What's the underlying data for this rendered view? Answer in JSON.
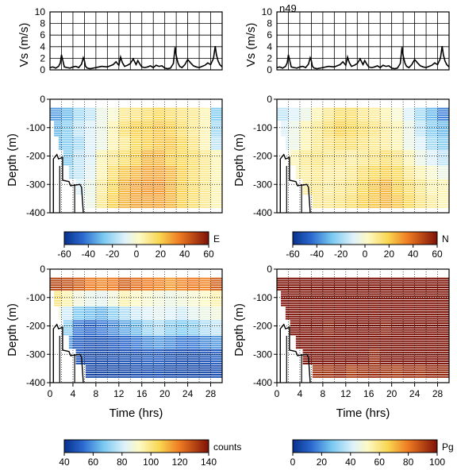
{
  "figure": {
    "station_label": "n49"
  },
  "chart_data": [
    {
      "id": "vs-left",
      "type": "line",
      "ylabel": "Vs (m/s)",
      "ylim": [
        0,
        10
      ],
      "yticks": [
        0,
        2,
        4,
        6,
        8,
        10
      ],
      "xlim": [
        0,
        30
      ],
      "grid": true,
      "x": [
        0,
        0.5,
        1,
        1.5,
        1.8,
        2,
        2.2,
        2.5,
        3,
        3.5,
        4,
        4.5,
        5,
        5.5,
        5.8,
        6,
        6.2,
        6.5,
        7,
        8,
        9,
        10,
        10.5,
        11,
        11.5,
        12,
        12.3,
        12.6,
        13,
        13.5,
        14,
        14.5,
        15,
        15.3,
        15.6,
        16,
        16.5,
        17,
        17.5,
        18,
        18.5,
        19,
        19.5,
        20,
        20.5,
        21,
        21.5,
        21.8,
        22,
        22.3,
        22.6,
        23,
        23.5,
        24,
        24.5,
        25,
        25.5,
        26,
        26.5,
        27,
        27.5,
        28,
        28.5,
        28.8,
        29,
        29.3,
        29.6,
        30
      ],
      "values": [
        0.4,
        0.5,
        0.3,
        0.6,
        1.2,
        2.6,
        1.8,
        0.5,
        0.4,
        0.3,
        0.5,
        0.6,
        0.4,
        1,
        2.1,
        1.6,
        0.6,
        0.3,
        0.2,
        0.4,
        0.6,
        0.5,
        0.7,
        0.9,
        1.4,
        0.8,
        2.2,
        1.3,
        0.6,
        0.8,
        1.1,
        1.9,
        0.9,
        1.6,
        1.1,
        0.5,
        0.4,
        0.5,
        0.7,
        0.4,
        0.8,
        0.6,
        0.7,
        0.3,
        0.2,
        0.3,
        1.1,
        3.9,
        2.5,
        1.2,
        0.6,
        0.4,
        0.9,
        1.8,
        1.2,
        0.7,
        0.5,
        0.4,
        0.6,
        0.8,
        1.2,
        0.9,
        2,
        4.1,
        2.6,
        1.5,
        0.9,
        0.5
      ]
    },
    {
      "id": "vs-right",
      "type": "line",
      "ylabel": "Vs (m/s)",
      "ylim": [
        0,
        10
      ],
      "yticks": [
        0,
        2,
        4,
        6,
        8,
        10
      ],
      "xlim": [
        0,
        30
      ],
      "grid": true,
      "x": [
        0,
        0.5,
        1,
        1.5,
        1.8,
        2,
        2.2,
        2.5,
        3,
        3.5,
        4,
        4.5,
        5,
        5.5,
        5.8,
        6,
        6.2,
        6.5,
        7,
        8,
        9,
        10,
        10.5,
        11,
        11.5,
        12,
        12.3,
        12.6,
        13,
        13.5,
        14,
        14.5,
        15,
        15.3,
        15.6,
        16,
        16.5,
        17,
        17.5,
        18,
        18.5,
        19,
        19.5,
        20,
        20.5,
        21,
        21.5,
        21.8,
        22,
        22.3,
        22.6,
        23,
        23.5,
        24,
        24.5,
        25,
        25.5,
        26,
        26.5,
        27,
        27.5,
        28,
        28.5,
        28.8,
        29,
        29.3,
        29.6,
        30
      ],
      "values": [
        0.4,
        0.5,
        0.3,
        0.6,
        1.2,
        2.6,
        1.8,
        0.5,
        0.4,
        0.3,
        0.5,
        0.6,
        0.4,
        1,
        2.1,
        1.6,
        0.6,
        0.3,
        0.2,
        0.4,
        0.6,
        0.5,
        0.7,
        0.9,
        1.4,
        0.8,
        2.2,
        1.3,
        0.6,
        0.8,
        1.1,
        1.9,
        0.9,
        1.6,
        1.1,
        0.5,
        0.4,
        0.5,
        0.7,
        0.4,
        0.8,
        0.6,
        0.7,
        0.3,
        0.2,
        0.3,
        1.1,
        3.9,
        2.5,
        1.2,
        0.6,
        0.4,
        0.9,
        1.8,
        1.2,
        0.7,
        0.5,
        0.4,
        0.6,
        0.8,
        1.2,
        0.9,
        2,
        4.1,
        2.6,
        1.5,
        0.9,
        0.5
      ]
    },
    {
      "id": "vel-e",
      "type": "heatmap",
      "variable": "E",
      "ylabel": "Depth (m)",
      "ylim": [
        -400,
        0
      ],
      "yticks": [
        -400,
        -300,
        -200,
        -100,
        0
      ],
      "xlim": [
        0,
        30
      ],
      "grid": true,
      "seafloor_depth": -400,
      "colorbar": {
        "label": "E",
        "min": -60,
        "max": 60,
        "ticks": [
          -60,
          -40,
          -20,
          0,
          20,
          40,
          60
        ],
        "colormap": "bluered"
      },
      "data_top": -30,
      "data_bottom": -385,
      "start_time": [
        0,
        0,
        0.7,
        1.5,
        2.3,
        3.3,
        4.5,
        6.2
      ],
      "time_bins": [
        0,
        2,
        4,
        6,
        8,
        10,
        12,
        14,
        16,
        18,
        20,
        22,
        24,
        26,
        28,
        30
      ],
      "values": [
        [
          -35,
          -30,
          -20,
          -15,
          -5,
          0,
          10,
          12,
          15,
          18,
          15,
          12,
          10,
          5,
          -25
        ],
        [
          -30,
          -25,
          -15,
          -10,
          -5,
          5,
          15,
          20,
          20,
          22,
          20,
          15,
          10,
          5,
          -20
        ],
        [
          -30,
          -25,
          -20,
          -10,
          -5,
          5,
          10,
          18,
          20,
          22,
          22,
          18,
          12,
          5,
          -15
        ],
        [
          -25,
          -25,
          -15,
          -10,
          5,
          10,
          15,
          20,
          25,
          25,
          20,
          18,
          15,
          10,
          5
        ],
        [
          -25,
          -20,
          -15,
          -8,
          5,
          15,
          22,
          25,
          28,
          28,
          25,
          20,
          15,
          10,
          5
        ],
        [
          -20,
          -15,
          -10,
          -5,
          8,
          18,
          25,
          28,
          30,
          30,
          25,
          20,
          15,
          10,
          5
        ],
        [
          -15,
          -10,
          -5,
          -5,
          10,
          20,
          25,
          28,
          28,
          28,
          25,
          20,
          15,
          10,
          5
        ]
      ]
    },
    {
      "id": "vel-n",
      "type": "heatmap",
      "variable": "N",
      "ylabel": "Depth (m)",
      "ylim": [
        -400,
        0
      ],
      "yticks": [
        -400,
        -300,
        -200,
        -100,
        0
      ],
      "xlim": [
        0,
        30
      ],
      "grid": true,
      "seafloor_depth": -400,
      "colorbar": {
        "label": "N",
        "min": -60,
        "max": 60,
        "ticks": [
          -60,
          -40,
          -20,
          0,
          20,
          40,
          60
        ],
        "colormap": "bluered"
      },
      "data_top": -30,
      "data_bottom": -385,
      "start_time": [
        0,
        0,
        0.7,
        1.5,
        2.3,
        3.3,
        4.5,
        6.2
      ],
      "time_bins": [
        0,
        2,
        4,
        6,
        8,
        10,
        12,
        14,
        16,
        18,
        20,
        22,
        24,
        26,
        28,
        30
      ],
      "values": [
        [
          -15,
          -10,
          -5,
          5,
          10,
          15,
          15,
          10,
          8,
          5,
          0,
          -10,
          -20,
          -30,
          -40
        ],
        [
          -10,
          -5,
          5,
          10,
          15,
          20,
          18,
          15,
          12,
          8,
          5,
          -5,
          -15,
          -25,
          -30
        ],
        [
          -10,
          -5,
          5,
          10,
          12,
          15,
          15,
          12,
          10,
          8,
          5,
          -5,
          -10,
          -20,
          -25
        ],
        [
          -8,
          5,
          10,
          12,
          10,
          10,
          8,
          10,
          12,
          15,
          12,
          5,
          -5,
          -10,
          -15
        ],
        [
          -5,
          5,
          8,
          10,
          8,
          8,
          10,
          15,
          18,
          20,
          18,
          10,
          5,
          0,
          -5
        ],
        [
          -5,
          5,
          8,
          10,
          8,
          10,
          12,
          18,
          22,
          25,
          20,
          15,
          10,
          5,
          5
        ],
        [
          0,
          5,
          8,
          10,
          10,
          12,
          15,
          20,
          22,
          25,
          22,
          18,
          12,
          8,
          5
        ]
      ]
    },
    {
      "id": "counts",
      "type": "heatmap",
      "variable": "counts",
      "ylabel": "Depth (m)",
      "xlabel": "Time (hrs)",
      "ylim": [
        -400,
        0
      ],
      "yticks": [
        -400,
        -300,
        -200,
        -100,
        0
      ],
      "xlim": [
        0,
        30
      ],
      "xticks": [
        0,
        4,
        8,
        12,
        16,
        20,
        24,
        28
      ],
      "grid": true,
      "seafloor_depth": -400,
      "colorbar": {
        "label": "counts",
        "min": 40,
        "max": 140,
        "ticks": [
          40,
          60,
          80,
          100,
          120,
          140
        ],
        "colormap": "bluered"
      },
      "data_top": -30,
      "data_bottom": -385,
      "start_time": [
        0,
        0,
        0.7,
        1.5,
        2.3,
        3.3,
        4.5,
        6.2
      ],
      "time_bins": [
        0,
        2,
        4,
        6,
        8,
        10,
        12,
        14,
        16,
        18,
        20,
        22,
        24,
        26,
        28,
        30
      ],
      "values": [
        [
          130,
          128,
          125,
          120,
          118,
          120,
          125,
          122,
          120,
          118,
          115,
          118,
          120,
          118,
          125
        ],
        [
          100,
          95,
          88,
          85,
          84,
          88,
          95,
          92,
          90,
          88,
          86,
          88,
          90,
          92,
          95
        ],
        [
          88,
          80,
          68,
          66,
          64,
          70,
          75,
          80,
          82,
          84,
          82,
          80,
          84,
          86,
          88
        ],
        [
          84,
          70,
          55,
          52,
          55,
          58,
          62,
          65,
          72,
          75,
          70,
          68,
          70,
          75,
          78
        ],
        [
          80,
          60,
          50,
          48,
          48,
          50,
          52,
          55,
          58,
          60,
          58,
          55,
          55,
          58,
          60
        ],
        [
          75,
          55,
          48,
          46,
          46,
          47,
          48,
          48,
          50,
          50,
          48,
          47,
          47,
          48,
          50
        ],
        [
          70,
          52,
          46,
          45,
          45,
          46,
          46,
          47,
          47,
          47,
          46,
          46,
          46,
          46,
          47
        ]
      ]
    },
    {
      "id": "pg",
      "type": "heatmap",
      "variable": "Pg",
      "ylabel": "Depth (m)",
      "xlabel": "Time (hrs)",
      "ylim": [
        -400,
        0
      ],
      "yticks": [
        -400,
        -300,
        -200,
        -100,
        0
      ],
      "xlim": [
        0,
        30
      ],
      "xticks": [
        0,
        4,
        8,
        12,
        16,
        20,
        24,
        28
      ],
      "grid": true,
      "seafloor_depth": -400,
      "colorbar": {
        "label": "Pg",
        "min": 0,
        "max": 100,
        "ticks": [
          0,
          20,
          40,
          60,
          80,
          100
        ],
        "colormap": "bluered"
      },
      "data_top": -30,
      "data_bottom": -385,
      "start_time": [
        0,
        0,
        0.7,
        1.5,
        2.3,
        3.3,
        4.5,
        6.2
      ],
      "time_bins": [
        0,
        2,
        4,
        6,
        8,
        10,
        12,
        14,
        16,
        18,
        20,
        22,
        24,
        26,
        28,
        30
      ],
      "values": [
        [
          100,
          100,
          100,
          100,
          100,
          100,
          100,
          100,
          100,
          100,
          100,
          100,
          100,
          100,
          100
        ],
        [
          100,
          100,
          100,
          100,
          100,
          100,
          100,
          100,
          100,
          100,
          100,
          100,
          100,
          100,
          100
        ],
        [
          100,
          100,
          100,
          100,
          100,
          100,
          100,
          100,
          100,
          100,
          100,
          100,
          100,
          100,
          100
        ],
        [
          100,
          100,
          100,
          100,
          98,
          100,
          100,
          100,
          100,
          98,
          100,
          100,
          100,
          100,
          100
        ],
        [
          100,
          100,
          100,
          100,
          100,
          100,
          100,
          100,
          100,
          100,
          100,
          100,
          100,
          100,
          100
        ],
        [
          100,
          98,
          100,
          100,
          100,
          100,
          100,
          100,
          96,
          100,
          100,
          100,
          100,
          100,
          100
        ],
        [
          100,
          100,
          96,
          94,
          94,
          96,
          92,
          94,
          95,
          94,
          93,
          95,
          94,
          96,
          96
        ]
      ]
    }
  ]
}
